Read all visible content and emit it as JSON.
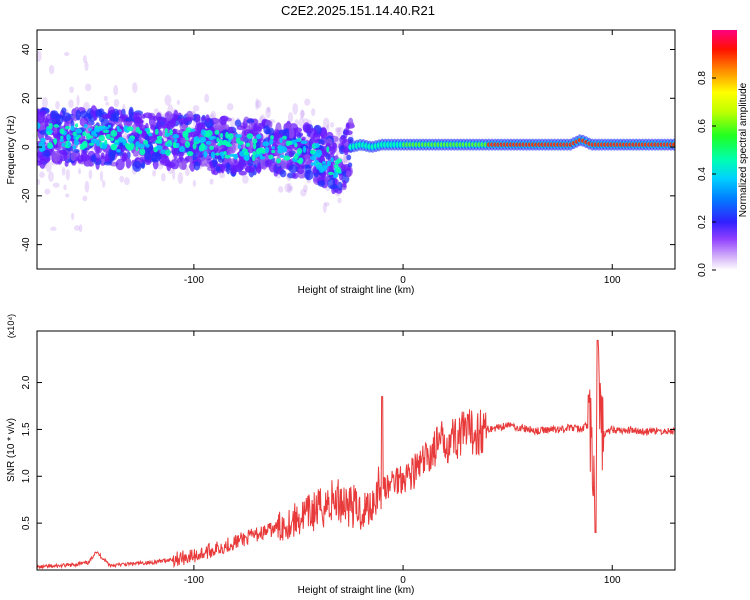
{
  "figure_title": "C2E2.2025.151.14.40.R21",
  "chart_data": [
    {
      "type": "heatmap",
      "xlabel": "Height of straight line (km)",
      "ylabel": "Frequency (Hz)",
      "xlim": [
        -175,
        130
      ],
      "ylim": [
        -50,
        48
      ],
      "xticks": [
        -100,
        0,
        100
      ],
      "yticks": [
        -40,
        -20,
        0,
        20,
        40
      ],
      "colorbar": {
        "label": "Normalized spectral amplitude",
        "range": [
          0,
          1
        ],
        "ticks": [
          "0.0",
          "0.2",
          "0.4",
          "0.6",
          "0.8"
        ],
        "colors": [
          "#ffffff",
          "#c8a0f0",
          "#8000ff",
          "#0000ff",
          "#00bfff",
          "#00ffaa",
          "#00ff00",
          "#aaff00",
          "#ffff00",
          "#ff8000",
          "#ff0000",
          "#ff0080"
        ]
      },
      "ridge": {
        "description_free": true,
        "x": [
          -175,
          -150,
          -125,
          -100,
          -75,
          -50,
          -40,
          -30,
          -25,
          -20,
          -15,
          -10,
          0,
          20,
          40,
          60,
          80,
          85,
          90,
          100,
          110,
          130
        ],
        "y": [
          4,
          4,
          3,
          2,
          0,
          -1,
          -4,
          -8,
          0,
          1,
          0,
          1,
          1,
          1,
          1,
          1,
          1,
          3,
          1,
          1,
          1,
          1
        ]
      }
    },
    {
      "type": "line",
      "xlabel": "Height of straight line (km)",
      "ylabel": "SNR (10 * v/v)",
      "y_multiplier": "(x10⁴)",
      "xlim": [
        -175,
        130
      ],
      "ylim": [
        0,
        2.55
      ],
      "xticks": [
        -100,
        0,
        100
      ],
      "yticks": [
        "0.5",
        "1.0",
        "1.5",
        "2.0"
      ],
      "ytick_values": [
        0.5,
        1.0,
        1.5,
        2.0
      ],
      "line_color": "#e83a3a",
      "x": [
        -175,
        -160,
        -150,
        -147,
        -140,
        -120,
        -100,
        -90,
        -80,
        -70,
        -60,
        -50,
        -45,
        -40,
        -35,
        -30,
        -25,
        -20,
        -15,
        -12,
        -10,
        -8,
        -5,
        0,
        5,
        10,
        15,
        20,
        25,
        30,
        35,
        40,
        45,
        50,
        55,
        60,
        65,
        70,
        75,
        80,
        85,
        88,
        90,
        92,
        93,
        94,
        96,
        100,
        105,
        110,
        115,
        120,
        125,
        130
      ],
      "y": [
        0.03,
        0.05,
        0.08,
        0.2,
        0.05,
        0.08,
        0.15,
        0.22,
        0.3,
        0.38,
        0.45,
        0.55,
        0.6,
        0.65,
        0.72,
        0.75,
        0.7,
        0.62,
        0.7,
        0.9,
        0.95,
        0.85,
        0.95,
        1.0,
        1.05,
        1.15,
        1.3,
        1.38,
        1.42,
        1.45,
        1.48,
        1.5,
        1.52,
        1.55,
        1.52,
        1.5,
        1.48,
        1.5,
        1.5,
        1.52,
        1.5,
        1.55,
        1.45,
        0.4,
        2.45,
        1.6,
        1.45,
        1.5,
        1.48,
        1.5,
        1.47,
        1.48,
        1.48,
        1.48
      ]
    }
  ]
}
